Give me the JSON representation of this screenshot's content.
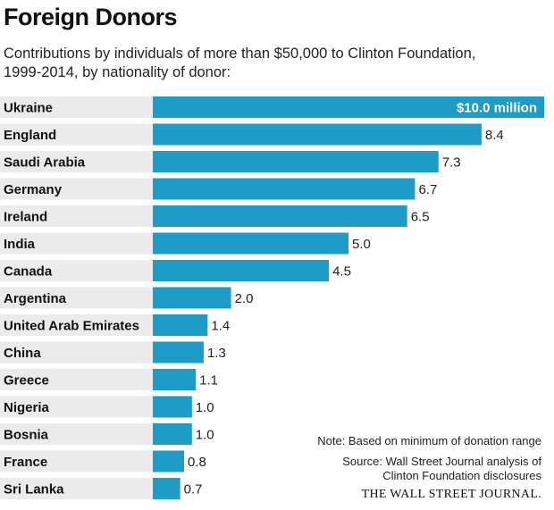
{
  "chart_data": {
    "type": "bar",
    "orientation": "horizontal",
    "title": "Foreign Donors",
    "subtitle_line1": "Contributions by individuals of more than $50,000 to Clinton Foundation,",
    "subtitle_line2": "1999-2014, by nationality of donor:",
    "categories": [
      "Ukraine",
      "England",
      "Saudi Arabia",
      "Germany",
      "Ireland",
      "India",
      "Canada",
      "Argentina",
      "United Arab Emirates",
      "China",
      "Greece",
      "Nigeria",
      "Bosnia",
      "France",
      "Sri Lanka"
    ],
    "values": [
      10.0,
      8.4,
      7.3,
      6.7,
      6.5,
      5.0,
      4.5,
      2.0,
      1.4,
      1.3,
      1.1,
      1.0,
      1.0,
      0.8,
      0.7
    ],
    "value_labels": [
      "$10.0 million",
      "8.4",
      "7.3",
      "6.7",
      "6.5",
      "5.0",
      "4.5",
      "2.0",
      "1.4",
      "1.3",
      "1.1",
      "1.0",
      "1.0",
      "0.8",
      "0.7"
    ],
    "unit": "$ million",
    "xlim": [
      0,
      10.0
    ],
    "grid": false,
    "legend": "none",
    "bar_color": "#1d9cc7",
    "band_color": "#ebebeb"
  },
  "note": "Note: Based on minimum of donation range",
  "source_line1": "Source: Wall Street Journal analysis of",
  "source_line2": "Clinton Foundation disclosures",
  "credit": "THE WALL STREET JOURNAL."
}
